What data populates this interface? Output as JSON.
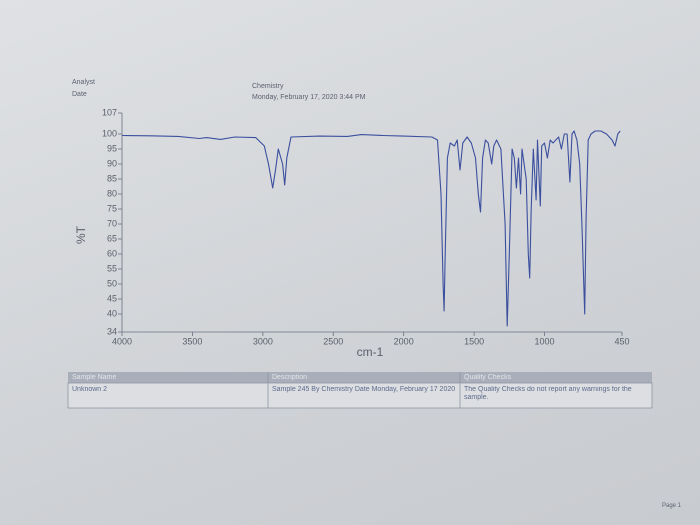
{
  "header": {
    "analyst": "Analyst",
    "date": "Date",
    "department": "Chemistry",
    "timestamp": "Monday, February 17, 2020 3:44 PM"
  },
  "chart_data": {
    "type": "line",
    "ylabel": "%T",
    "xlabel": "cm-1",
    "color": "#3b4f9e",
    "xlim": [
      4000,
      450
    ],
    "xticks": [
      4000,
      3500,
      3000,
      2500,
      2000,
      1500,
      1000,
      450
    ],
    "ylim": [
      34,
      107
    ],
    "yticks": [
      34,
      40,
      45,
      50,
      55,
      60,
      65,
      70,
      75,
      80,
      85,
      90,
      95,
      100,
      107
    ],
    "x": [
      4000,
      3800,
      3600,
      3450,
      3400,
      3300,
      3200,
      3050,
      2990,
      2960,
      2930,
      2910,
      2890,
      2860,
      2845,
      2830,
      2800,
      2600,
      2400,
      2300,
      2150,
      2000,
      1800,
      1760,
      1735,
      1720,
      1713,
      1705,
      1690,
      1670,
      1640,
      1620,
      1600,
      1580,
      1550,
      1520,
      1490,
      1470,
      1455,
      1440,
      1420,
      1400,
      1375,
      1360,
      1340,
      1310,
      1280,
      1265,
      1250,
      1230,
      1215,
      1200,
      1185,
      1170,
      1160,
      1130,
      1115,
      1105,
      1095,
      1080,
      1060,
      1050,
      1030,
      1020,
      1000,
      980,
      960,
      940,
      900,
      880,
      860,
      840,
      820,
      805,
      790,
      770,
      750,
      735,
      725,
      715,
      705,
      690,
      670,
      640,
      600,
      560,
      520,
      500,
      480,
      463
    ],
    "values": [
      99.5,
      99.4,
      99.2,
      98.5,
      98.8,
      98.2,
      99.0,
      98.8,
      96,
      90,
      82,
      88,
      95,
      90,
      83,
      92,
      99,
      99.3,
      99.2,
      99.8,
      99.5,
      99.3,
      99.0,
      98,
      80,
      50,
      41,
      60,
      92,
      97,
      96,
      98,
      88,
      97,
      99,
      97,
      92,
      80,
      74,
      92,
      98,
      97,
      90,
      96,
      98,
      95,
      70,
      36,
      60,
      95,
      92,
      82,
      92,
      80,
      95,
      85,
      60,
      52,
      75,
      95,
      78,
      98,
      76,
      96,
      97,
      92,
      98,
      97,
      99,
      95,
      100,
      100,
      84,
      100,
      101,
      98,
      90,
      70,
      55,
      40,
      72,
      98,
      100,
      101,
      101,
      100,
      98,
      96,
      100,
      101
    ]
  },
  "table": {
    "headers": [
      "Sample Name",
      "Description",
      "Quality Checks"
    ],
    "rows": [
      [
        "Unknown 2",
        "Sample 245 By Chemistry Date Monday, February 17 2020",
        "The Quality Checks do not report any warnings for the sample."
      ]
    ]
  },
  "footer": "Page 1"
}
